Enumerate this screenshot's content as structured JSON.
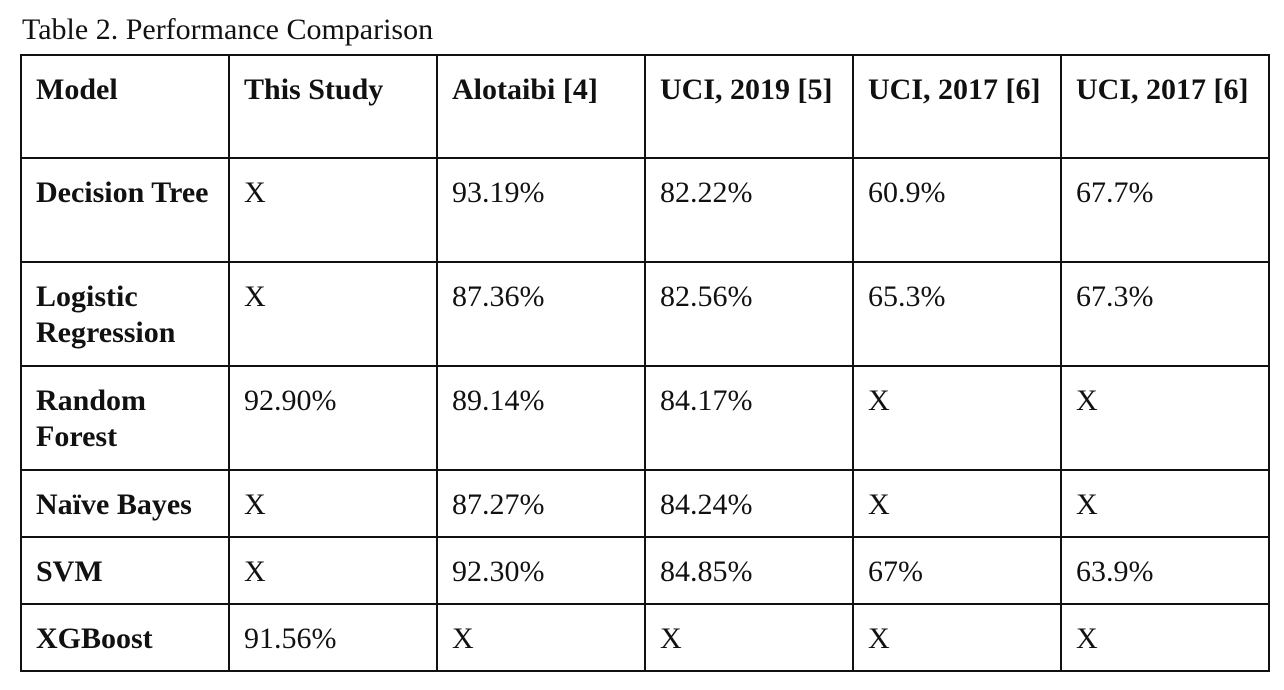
{
  "caption": "Table 2. Performance Comparison",
  "table": {
    "headers": [
      "Model",
      "This Study",
      "Alotaibi [4]",
      "UCI, 2019 [5]",
      "UCI, 2017 [6]",
      "UCI, 2017 [6]"
    ],
    "rows": [
      {
        "model": "Decision Tree",
        "cells": [
          "X",
          "93.19%",
          "82.22%",
          "60.9%",
          "67.7%"
        ]
      },
      {
        "model": "Logistic Regression",
        "cells": [
          "X",
          "87.36%",
          "82.56%",
          "65.3%",
          "67.3%"
        ]
      },
      {
        "model": "Random Forest",
        "cells": [
          "92.90%",
          "89.14%",
          "84.17%",
          "X",
          "X"
        ]
      },
      {
        "model": "Naïve Bayes",
        "cells": [
          "X",
          "87.27%",
          "84.24%",
          "X",
          "X"
        ]
      },
      {
        "model": "SVM",
        "cells": [
          "X",
          "92.30%",
          "84.85%",
          "67%",
          "63.9%"
        ]
      },
      {
        "model": "XGBoost",
        "cells": [
          "91.56%",
          "X",
          "X",
          "X",
          "X"
        ]
      }
    ]
  }
}
